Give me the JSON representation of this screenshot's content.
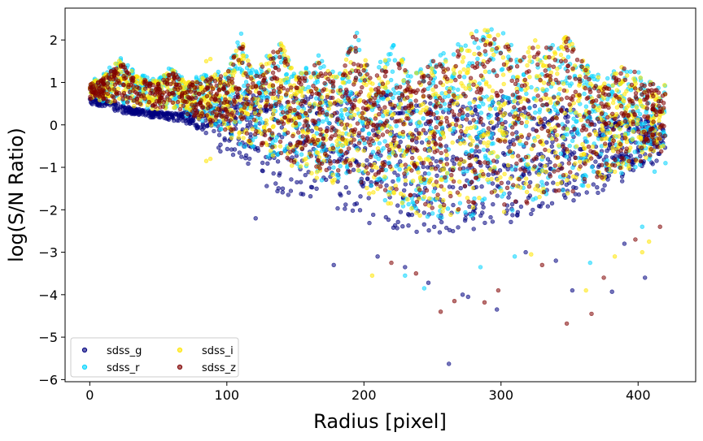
{
  "chart_data": {
    "type": "scatter",
    "title": "",
    "xlabel": "Radius [pixel]",
    "ylabel": "log(S/N Ratio)",
    "xlim": [
      -18,
      442
    ],
    "ylim": [
      -6.05,
      2.75
    ],
    "xticks": [
      0,
      100,
      200,
      300,
      400
    ],
    "yticks": [
      2,
      1,
      0,
      -1,
      -2,
      -3,
      -4,
      -5,
      -6
    ],
    "grid": false,
    "legend_position": "lower-left",
    "legend_columns": 2,
    "series": [
      {
        "name": "sdss_g",
        "color": "#00007f",
        "draw_order": 1,
        "upper_envelope": [
          [
            0,
            0.7
          ],
          [
            10,
            0.6
          ],
          [
            25,
            0.45
          ],
          [
            40,
            0.35
          ],
          [
            55,
            0.3
          ],
          [
            70,
            0.3
          ],
          [
            85,
            0.4
          ],
          [
            100,
            0.6
          ],
          [
            112,
            0.8
          ],
          [
            140,
            0.7
          ],
          [
            195,
            0.8
          ],
          [
            240,
            0.6
          ],
          [
            290,
            0.6
          ],
          [
            300,
            0.7
          ],
          [
            330,
            0.5
          ],
          [
            370,
            0.3
          ],
          [
            400,
            0.2
          ],
          [
            420,
            0.0
          ]
        ],
        "lower_envelope": [
          [
            0,
            0.5
          ],
          [
            20,
            0.3
          ],
          [
            40,
            0.2
          ],
          [
            60,
            0.1
          ],
          [
            75,
            0.0
          ],
          [
            90,
            -0.5
          ],
          [
            110,
            -1.0
          ],
          [
            130,
            -1.5
          ],
          [
            160,
            -1.9
          ],
          [
            200,
            -2.3
          ],
          [
            240,
            -2.6
          ],
          [
            280,
            -2.5
          ],
          [
            320,
            -2.2
          ],
          [
            360,
            -1.8
          ],
          [
            400,
            -1.2
          ],
          [
            420,
            -0.7
          ]
        ],
        "sample_points": [
          [
            262,
            -5.63
          ],
          [
            297,
            -4.35
          ],
          [
            276,
            -4.05
          ],
          [
            272,
            -4.0
          ],
          [
            247,
            -3.72
          ],
          [
            230,
            -3.35
          ],
          [
            210,
            -3.1
          ],
          [
            178,
            -3.3
          ],
          [
            121,
            -2.2
          ],
          [
            352,
            -3.9
          ],
          [
            381,
            -3.93
          ],
          [
            405,
            -3.6
          ],
          [
            390,
            -2.8
          ],
          [
            340,
            -3.2
          ],
          [
            318,
            -3.0
          ]
        ]
      },
      {
        "name": "sdss_r",
        "color": "#00d4ff",
        "draw_order": 2,
        "upper_envelope": [
          [
            0,
            1.05
          ],
          [
            10,
            1.2
          ],
          [
            22,
            1.6
          ],
          [
            35,
            1.2
          ],
          [
            50,
            1.1
          ],
          [
            60,
            1.4
          ],
          [
            70,
            1.05
          ],
          [
            85,
            1.2
          ],
          [
            100,
            1.3
          ],
          [
            110,
            2.2
          ],
          [
            120,
            1.2
          ],
          [
            138,
            2.2
          ],
          [
            150,
            1.2
          ],
          [
            165,
            1.7
          ],
          [
            180,
            1.2
          ],
          [
            195,
            2.35
          ],
          [
            205,
            1.2
          ],
          [
            222,
            1.9
          ],
          [
            235,
            1.2
          ],
          [
            250,
            1.6
          ],
          [
            265,
            1.8
          ],
          [
            280,
            2.3
          ],
          [
            300,
            2.35
          ],
          [
            312,
            1.6
          ],
          [
            328,
            2.25
          ],
          [
            340,
            1.8
          ],
          [
            348,
            2.2
          ],
          [
            365,
            1.3
          ],
          [
            380,
            1.2
          ],
          [
            392,
            1.55
          ],
          [
            405,
            1.1
          ],
          [
            420,
            1.0
          ]
        ],
        "lower_envelope": [
          [
            0,
            0.6
          ],
          [
            20,
            0.5
          ],
          [
            40,
            0.4
          ],
          [
            60,
            0.3
          ],
          [
            80,
            0.1
          ],
          [
            110,
            -0.5
          ],
          [
            150,
            -1.1
          ],
          [
            200,
            -1.7
          ],
          [
            240,
            -2.2
          ],
          [
            280,
            -2.2
          ],
          [
            320,
            -2.0
          ],
          [
            360,
            -1.6
          ],
          [
            400,
            -1.0
          ],
          [
            420,
            -0.6
          ]
        ],
        "sample_points": [
          [
            244,
            -3.85
          ],
          [
            310,
            -3.1
          ],
          [
            285,
            -3.35
          ],
          [
            365,
            -3.25
          ],
          [
            230,
            -3.55
          ],
          [
            403,
            -2.4
          ],
          [
            412,
            -1.1
          ],
          [
            420,
            -0.9
          ]
        ]
      },
      {
        "name": "sdss_i",
        "color": "#ffe500",
        "draw_order": 3,
        "upper_envelope": [
          [
            0,
            1.0
          ],
          [
            10,
            1.15
          ],
          [
            22,
            1.55
          ],
          [
            35,
            1.15
          ],
          [
            50,
            1.05
          ],
          [
            60,
            1.35
          ],
          [
            70,
            1.0
          ],
          [
            85,
            1.15
          ],
          [
            100,
            1.25
          ],
          [
            110,
            2.1
          ],
          [
            120,
            1.15
          ],
          [
            138,
            2.1
          ],
          [
            150,
            1.15
          ],
          [
            165,
            1.6
          ],
          [
            180,
            1.15
          ],
          [
            195,
            2.3
          ],
          [
            205,
            1.15
          ],
          [
            222,
            1.85
          ],
          [
            235,
            1.15
          ],
          [
            250,
            1.55
          ],
          [
            265,
            1.75
          ],
          [
            280,
            2.25
          ],
          [
            300,
            2.3
          ],
          [
            312,
            1.55
          ],
          [
            328,
            2.2
          ],
          [
            340,
            1.75
          ],
          [
            348,
            2.15
          ],
          [
            365,
            1.25
          ],
          [
            380,
            1.15
          ],
          [
            392,
            1.5
          ],
          [
            405,
            1.05
          ],
          [
            420,
            0.95
          ]
        ],
        "lower_envelope": [
          [
            0,
            0.6
          ],
          [
            20,
            0.5
          ],
          [
            40,
            0.4
          ],
          [
            60,
            0.3
          ],
          [
            80,
            0.1
          ],
          [
            110,
            -0.5
          ],
          [
            150,
            -1.1
          ],
          [
            200,
            -1.7
          ],
          [
            240,
            -2.2
          ],
          [
            280,
            -2.2
          ],
          [
            320,
            -2.0
          ],
          [
            360,
            -1.6
          ],
          [
            400,
            -1.0
          ],
          [
            420,
            -0.6
          ]
        ],
        "sample_points": [
          [
            85,
            1.5
          ],
          [
            88,
            1.55
          ],
          [
            206,
            -3.55
          ],
          [
            322,
            -3.05
          ],
          [
            362,
            -3.9
          ],
          [
            383,
            -3.1
          ],
          [
            403,
            -3.0
          ],
          [
            408,
            -2.75
          ],
          [
            85,
            -0.85
          ],
          [
            88,
            -0.8
          ]
        ]
      },
      {
        "name": "sdss_z",
        "color": "#7f0000",
        "draw_order": 4,
        "upper_envelope": [
          [
            0,
            0.95
          ],
          [
            10,
            1.1
          ],
          [
            22,
            1.5
          ],
          [
            35,
            1.1
          ],
          [
            50,
            1.0
          ],
          [
            60,
            1.3
          ],
          [
            70,
            0.95
          ],
          [
            85,
            1.1
          ],
          [
            100,
            1.2
          ],
          [
            110,
            2.0
          ],
          [
            120,
            1.1
          ],
          [
            138,
            2.0
          ],
          [
            150,
            1.1
          ],
          [
            165,
            1.55
          ],
          [
            180,
            1.1
          ],
          [
            195,
            2.2
          ],
          [
            205,
            1.1
          ],
          [
            222,
            1.8
          ],
          [
            235,
            1.1
          ],
          [
            250,
            1.5
          ],
          [
            265,
            1.7
          ],
          [
            280,
            2.15
          ],
          [
            300,
            2.2
          ],
          [
            312,
            1.5
          ],
          [
            328,
            2.15
          ],
          [
            340,
            1.7
          ],
          [
            348,
            2.1
          ],
          [
            365,
            1.2
          ],
          [
            380,
            1.1
          ],
          [
            392,
            1.45
          ],
          [
            405,
            1.0
          ],
          [
            420,
            0.9
          ]
        ],
        "lower_envelope": [
          [
            0,
            0.6
          ],
          [
            20,
            0.5
          ],
          [
            40,
            0.45
          ],
          [
            60,
            0.35
          ],
          [
            80,
            0.15
          ],
          [
            110,
            -0.3
          ],
          [
            150,
            -0.9
          ],
          [
            200,
            -1.5
          ],
          [
            240,
            -2.0
          ],
          [
            280,
            -2.0
          ],
          [
            320,
            -1.85
          ],
          [
            360,
            -1.5
          ],
          [
            400,
            -0.9
          ],
          [
            420,
            -0.6
          ]
        ],
        "sample_points": [
          [
            348,
            -4.68
          ],
          [
            366,
            -4.45
          ],
          [
            288,
            -4.18
          ],
          [
            266,
            -4.15
          ],
          [
            256,
            -4.4
          ],
          [
            298,
            -3.9
          ],
          [
            238,
            -3.5
          ],
          [
            220,
            -3.25
          ],
          [
            330,
            -3.3
          ],
          [
            375,
            -3.6
          ],
          [
            398,
            -2.7
          ],
          [
            416,
            -2.4
          ]
        ]
      }
    ]
  }
}
